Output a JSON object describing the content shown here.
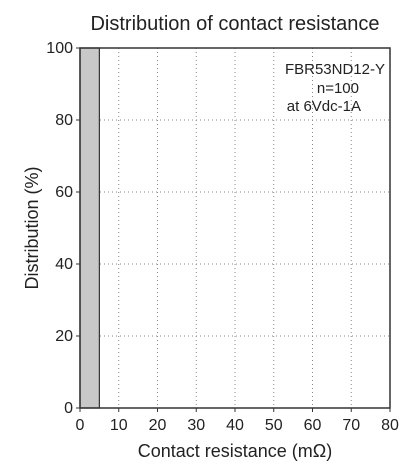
{
  "chart_data": {
    "type": "bar",
    "title": "Distribution of contact resistance",
    "xlabel": "Contact resistance (mΩ)",
    "ylabel": "Distribution (%)",
    "xlim": [
      0,
      80
    ],
    "ylim": [
      0,
      100
    ],
    "xticks": [
      0,
      10,
      20,
      30,
      40,
      50,
      60,
      70,
      80
    ],
    "yticks": [
      0,
      20,
      40,
      60,
      80,
      100
    ],
    "grid": true,
    "bins": [
      {
        "x_start": 0,
        "x_end": 5,
        "value": 100
      }
    ],
    "annotation": [
      "FBR53ND12-Y",
      "n=100",
      "at 6Vdc-1A"
    ],
    "colors": {
      "bar_fill": "#c8c8c8",
      "bar_stroke": "#333333",
      "grid": "#888888"
    }
  }
}
